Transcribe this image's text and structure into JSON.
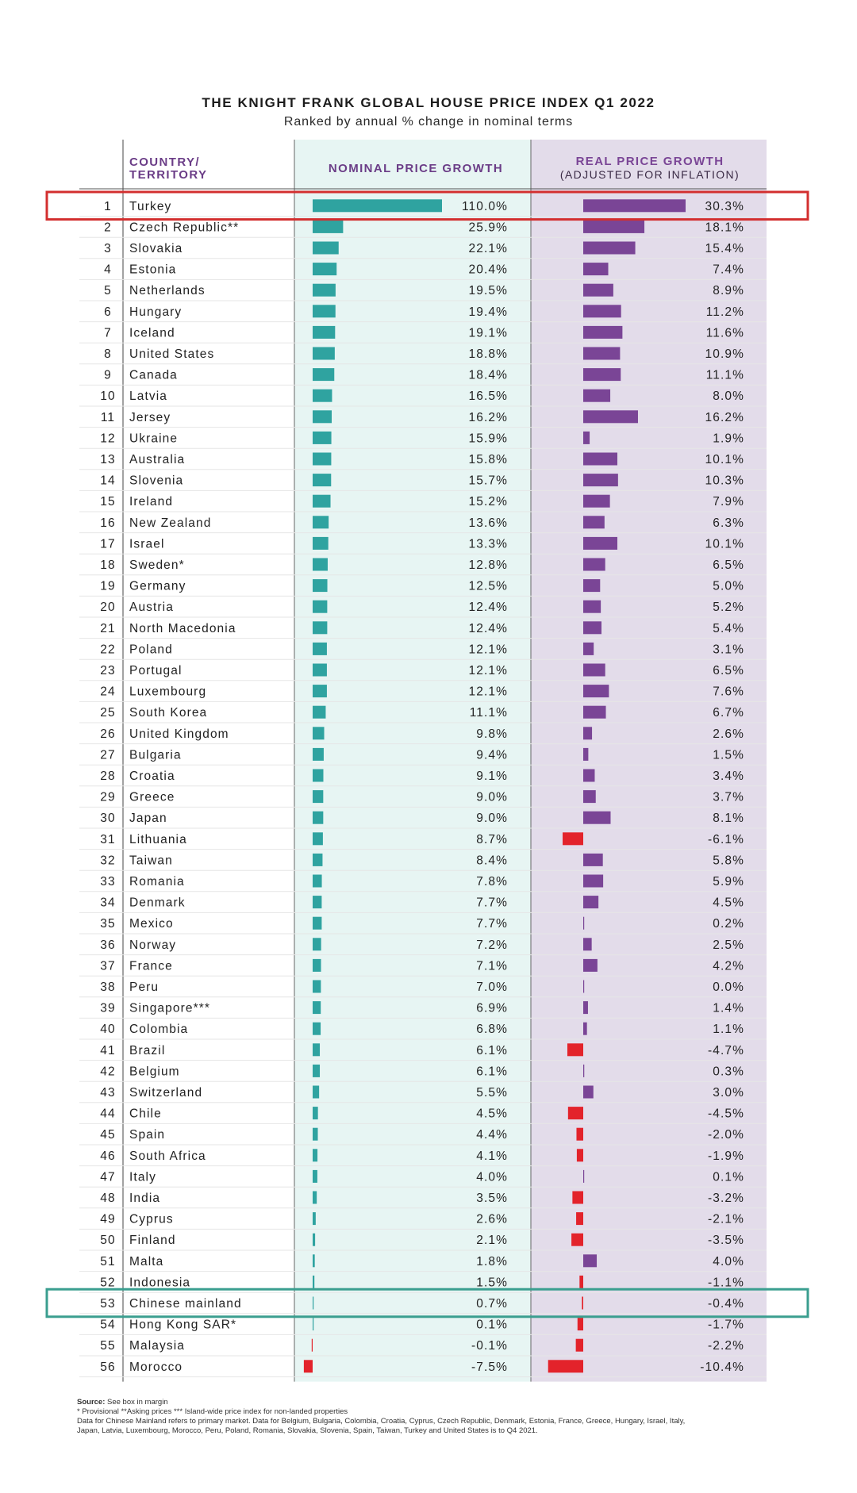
{
  "title": "THE KNIGHT FRANK GLOBAL HOUSE PRICE INDEX Q1 2022",
  "subtitle": "Ranked by annual % change in nominal terms",
  "headers": {
    "country_line1": "COUNTRY/",
    "country_line2": "TERRITORY",
    "nominal": "NOMINAL PRICE GROWTH",
    "real_line1": "REAL PRICE GROWTH",
    "real_line2": "(ADJUSTED FOR INFLATION)"
  },
  "colors": {
    "nominal_bar": "#2fa3a0",
    "nominal_bg": "#e7f5f3",
    "real_bar": "#7a4596",
    "real_bg": "#e3dcea",
    "negative_bar": "#e3232b",
    "highlight_top": "#d32f2f",
    "highlight_china": "#3a9e8f",
    "header_text": "#6b3d87"
  },
  "chart_data": {
    "type": "bar",
    "unit": "%",
    "rows": [
      {
        "rank": "1",
        "name": "Turkey",
        "nominal": 110.0,
        "real": 30.3,
        "nominal_label": "110.0%",
        "real_label": "30.3%"
      },
      {
        "rank": "2",
        "name": "Czech Republic**",
        "nominal": 25.9,
        "real": 18.1,
        "nominal_label": "25.9%",
        "real_label": "18.1%"
      },
      {
        "rank": "3",
        "name": "Slovakia",
        "nominal": 22.1,
        "real": 15.4,
        "nominal_label": "22.1%",
        "real_label": "15.4%"
      },
      {
        "rank": "4",
        "name": "Estonia",
        "nominal": 20.4,
        "real": 7.4,
        "nominal_label": "20.4%",
        "real_label": "7.4%"
      },
      {
        "rank": "5",
        "name": "Netherlands",
        "nominal": 19.5,
        "real": 8.9,
        "nominal_label": "19.5%",
        "real_label": "8.9%"
      },
      {
        "rank": "6",
        "name": "Hungary",
        "nominal": 19.4,
        "real": 11.2,
        "nominal_label": "19.4%",
        "real_label": "11.2%"
      },
      {
        "rank": "7",
        "name": "Iceland",
        "nominal": 19.1,
        "real": 11.6,
        "nominal_label": "19.1%",
        "real_label": "11.6%"
      },
      {
        "rank": "8",
        "name": "United States",
        "nominal": 18.8,
        "real": 10.9,
        "nominal_label": "18.8%",
        "real_label": "10.9%"
      },
      {
        "rank": "9",
        "name": "Canada",
        "nominal": 18.4,
        "real": 11.1,
        "nominal_label": "18.4%",
        "real_label": "11.1%"
      },
      {
        "rank": "10",
        "name": "Latvia",
        "nominal": 16.5,
        "real": 8.0,
        "nominal_label": "16.5%",
        "real_label": "8.0%"
      },
      {
        "rank": "11",
        "name": "Jersey",
        "nominal": 16.2,
        "real": 16.2,
        "nominal_label": "16.2%",
        "real_label": "16.2%"
      },
      {
        "rank": "12",
        "name": "Ukraine",
        "nominal": 15.9,
        "real": 1.9,
        "nominal_label": "15.9%",
        "real_label": "1.9%"
      },
      {
        "rank": "13",
        "name": "Australia",
        "nominal": 15.8,
        "real": 10.1,
        "nominal_label": "15.8%",
        "real_label": "10.1%"
      },
      {
        "rank": "14",
        "name": "Slovenia",
        "nominal": 15.7,
        "real": 10.3,
        "nominal_label": "15.7%",
        "real_label": "10.3%"
      },
      {
        "rank": "15",
        "name": "Ireland",
        "nominal": 15.2,
        "real": 7.9,
        "nominal_label": "15.2%",
        "real_label": "7.9%"
      },
      {
        "rank": "16",
        "name": "New Zealand",
        "nominal": 13.6,
        "real": 6.3,
        "nominal_label": "13.6%",
        "real_label": "6.3%"
      },
      {
        "rank": "17",
        "name": "Israel",
        "nominal": 13.3,
        "real": 10.1,
        "nominal_label": "13.3%",
        "real_label": "10.1%"
      },
      {
        "rank": "18",
        "name": "Sweden*",
        "nominal": 12.8,
        "real": 6.5,
        "nominal_label": "12.8%",
        "real_label": "6.5%"
      },
      {
        "rank": "19",
        "name": "Germany",
        "nominal": 12.5,
        "real": 5.0,
        "nominal_label": "12.5%",
        "real_label": "5.0%"
      },
      {
        "rank": "20",
        "name": "Austria",
        "nominal": 12.4,
        "real": 5.2,
        "nominal_label": "12.4%",
        "real_label": "5.2%"
      },
      {
        "rank": "21",
        "name": "North Macedonia",
        "nominal": 12.4,
        "real": 5.4,
        "nominal_label": "12.4%",
        "real_label": "5.4%"
      },
      {
        "rank": "22",
        "name": "Poland",
        "nominal": 12.1,
        "real": 3.1,
        "nominal_label": "12.1%",
        "real_label": "3.1%"
      },
      {
        "rank": "23",
        "name": "Portugal",
        "nominal": 12.1,
        "real": 6.5,
        "nominal_label": "12.1%",
        "real_label": "6.5%"
      },
      {
        "rank": "24",
        "name": "Luxembourg",
        "nominal": 12.1,
        "real": 7.6,
        "nominal_label": "12.1%",
        "real_label": "7.6%"
      },
      {
        "rank": "25",
        "name": "South Korea",
        "nominal": 11.1,
        "real": 6.7,
        "nominal_label": "11.1%",
        "real_label": "6.7%"
      },
      {
        "rank": "26",
        "name": "United Kingdom",
        "nominal": 9.8,
        "real": 2.6,
        "nominal_label": "9.8%",
        "real_label": "2.6%"
      },
      {
        "rank": "27",
        "name": "Bulgaria",
        "nominal": 9.4,
        "real": 1.5,
        "nominal_label": "9.4%",
        "real_label": "1.5%"
      },
      {
        "rank": "28",
        "name": "Croatia",
        "nominal": 9.1,
        "real": 3.4,
        "nominal_label": "9.1%",
        "real_label": "3.4%"
      },
      {
        "rank": "29",
        "name": "Greece",
        "nominal": 9.0,
        "real": 3.7,
        "nominal_label": "9.0%",
        "real_label": "3.7%"
      },
      {
        "rank": "30",
        "name": "Japan",
        "nominal": 9.0,
        "real": 8.1,
        "nominal_label": "9.0%",
        "real_label": "8.1%"
      },
      {
        "rank": "31",
        "name": "Lithuania",
        "nominal": 8.7,
        "real": -6.1,
        "nominal_label": "8.7%",
        "real_label": "-6.1%"
      },
      {
        "rank": "32",
        "name": "Taiwan",
        "nominal": 8.4,
        "real": 5.8,
        "nominal_label": "8.4%",
        "real_label": "5.8%"
      },
      {
        "rank": "33",
        "name": "Romania",
        "nominal": 7.8,
        "real": 5.9,
        "nominal_label": "7.8%",
        "real_label": "5.9%"
      },
      {
        "rank": "34",
        "name": "Denmark",
        "nominal": 7.7,
        "real": 4.5,
        "nominal_label": "7.7%",
        "real_label": "4.5%"
      },
      {
        "rank": "35",
        "name": "Mexico",
        "nominal": 7.7,
        "real": 0.2,
        "nominal_label": "7.7%",
        "real_label": "0.2%"
      },
      {
        "rank": "36",
        "name": "Norway",
        "nominal": 7.2,
        "real": 2.5,
        "nominal_label": "7.2%",
        "real_label": "2.5%"
      },
      {
        "rank": "37",
        "name": "France",
        "nominal": 7.1,
        "real": 4.2,
        "nominal_label": "7.1%",
        "real_label": "4.2%"
      },
      {
        "rank": "38",
        "name": "Peru",
        "nominal": 7.0,
        "real": 0.0,
        "nominal_label": "7.0%",
        "real_label": "0.0%"
      },
      {
        "rank": "39",
        "name": "Singapore***",
        "nominal": 6.9,
        "real": 1.4,
        "nominal_label": "6.9%",
        "real_label": "1.4%"
      },
      {
        "rank": "40",
        "name": "Colombia",
        "nominal": 6.8,
        "real": 1.1,
        "nominal_label": "6.8%",
        "real_label": "1.1%"
      },
      {
        "rank": "41",
        "name": "Brazil",
        "nominal": 6.1,
        "real": -4.7,
        "nominal_label": "6.1%",
        "real_label": "-4.7%"
      },
      {
        "rank": "42",
        "name": "Belgium",
        "nominal": 6.1,
        "real": 0.3,
        "nominal_label": "6.1%",
        "real_label": "0.3%"
      },
      {
        "rank": "43",
        "name": "Switzerland",
        "nominal": 5.5,
        "real": 3.0,
        "nominal_label": "5.5%",
        "real_label": "3.0%"
      },
      {
        "rank": "44",
        "name": "Chile",
        "nominal": 4.5,
        "real": -4.5,
        "nominal_label": "4.5%",
        "real_label": "-4.5%"
      },
      {
        "rank": "45",
        "name": "Spain",
        "nominal": 4.4,
        "real": -2.0,
        "nominal_label": "4.4%",
        "real_label": "-2.0%"
      },
      {
        "rank": "46",
        "name": "South Africa",
        "nominal": 4.1,
        "real": -1.9,
        "nominal_label": "4.1%",
        "real_label": "-1.9%"
      },
      {
        "rank": "47",
        "name": "Italy",
        "nominal": 4.0,
        "real": 0.1,
        "nominal_label": "4.0%",
        "real_label": "0.1%"
      },
      {
        "rank": "48",
        "name": "India",
        "nominal": 3.5,
        "real": -3.2,
        "nominal_label": "3.5%",
        "real_label": "-3.2%"
      },
      {
        "rank": "49",
        "name": "Cyprus",
        "nominal": 2.6,
        "real": -2.1,
        "nominal_label": "2.6%",
        "real_label": "-2.1%"
      },
      {
        "rank": "50",
        "name": "Finland",
        "nominal": 2.1,
        "real": -3.5,
        "nominal_label": "2.1%",
        "real_label": "-3.5%"
      },
      {
        "rank": "51",
        "name": "Malta",
        "nominal": 1.8,
        "real": 4.0,
        "nominal_label": "1.8%",
        "real_label": "4.0%"
      },
      {
        "rank": "52",
        "name": "Indonesia",
        "nominal": 1.5,
        "real": -1.1,
        "nominal_label": "1.5%",
        "real_label": "-1.1%"
      },
      {
        "rank": "53",
        "name": "Chinese mainland",
        "nominal": 0.7,
        "real": -0.4,
        "nominal_label": "0.7%",
        "real_label": "-0.4%"
      },
      {
        "rank": "54",
        "name": "Hong Kong SAR*",
        "nominal": 0.1,
        "real": -1.7,
        "nominal_label": "0.1%",
        "real_label": "-1.7%"
      },
      {
        "rank": "55",
        "name": "Malaysia",
        "nominal": -0.1,
        "real": -2.2,
        "nominal_label": "-0.1%",
        "real_label": "-2.2%"
      },
      {
        "rank": "56",
        "name": "Morocco",
        "nominal": -7.5,
        "real": -10.4,
        "nominal_label": "-7.5%",
        "real_label": "-10.4%"
      }
    ],
    "highlighted_ranks": [
      "1",
      "53"
    ]
  },
  "footnotes": {
    "source_label": "Source:",
    "source_text": "See box in margin",
    "line1": "* Provisional **Asking prices *** Island-wide price index for non-landed properties",
    "line2": "Data for Chinese Mainland refers to primary market. Data for Belgium, Bulgaria, Colombia, Croatia, Cyprus, Czech Republic, Denmark, Estonia, France, Greece, Hungary, Israel, Italy,",
    "line3": "Japan, Latvia, Luxembourg, Morocco, Peru, Poland, Romania, Slovakia, Slovenia, Spain, Taiwan, Turkey and United States is to Q4 2021."
  }
}
